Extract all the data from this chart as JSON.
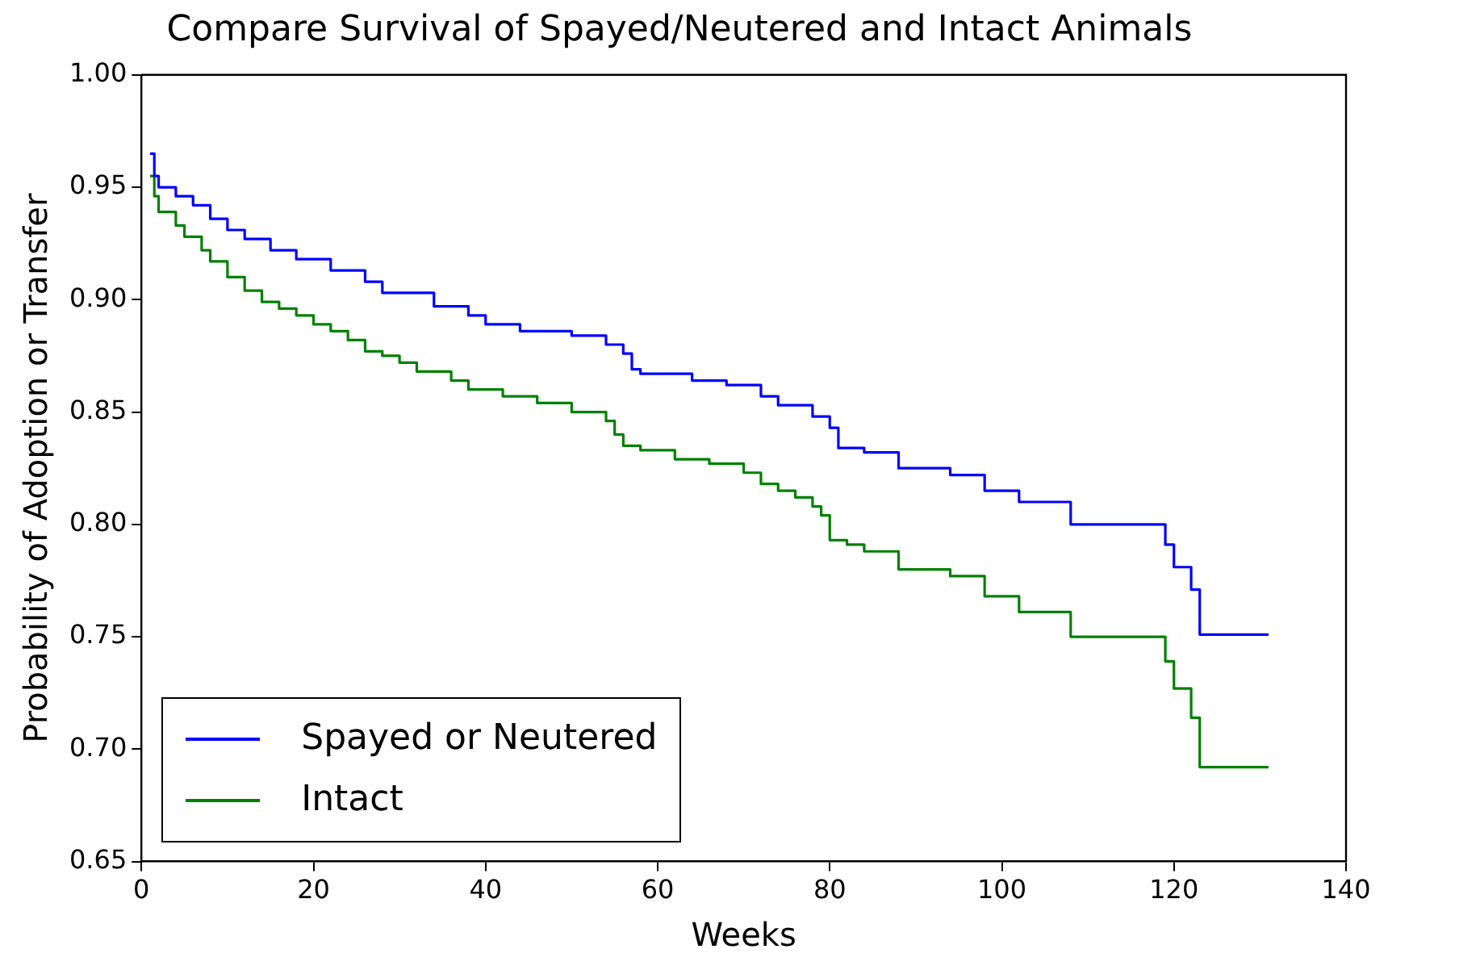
{
  "chart_data": {
    "type": "step",
    "title": "Compare Survival of Spayed/Neutered and Intact Animals",
    "xlabel": "Weeks",
    "ylabel": "Probability of Adoption or Transfer",
    "xlim": [
      0,
      140
    ],
    "xticks": [
      0,
      20,
      40,
      60,
      80,
      100,
      120,
      140
    ],
    "ylim": [
      0.65,
      1.0
    ],
    "yticks": [
      {
        "value": 0.65,
        "label": "0.65"
      },
      {
        "value": 0.7,
        "label": "0.70"
      },
      {
        "value": 0.75,
        "label": "0.75"
      },
      {
        "value": 0.8,
        "label": "0.80"
      },
      {
        "value": 0.85,
        "label": "0.85"
      },
      {
        "value": 0.9,
        "label": "0.90"
      },
      {
        "value": 0.95,
        "label": "0.95"
      },
      {
        "value": 1.0,
        "label": "1.00"
      }
    ],
    "grid": false,
    "legend": "bottom left",
    "series": [
      {
        "name": "Spayed or Neutered",
        "color": "#0000ff",
        "x": [
          1,
          1.5,
          2,
          4,
          6,
          8,
          10,
          12,
          15,
          18,
          22,
          26,
          28,
          34,
          38,
          40,
          44,
          50,
          54,
          56,
          57,
          58,
          64,
          68,
          72,
          74,
          78,
          80,
          81,
          84,
          88,
          94,
          98,
          102,
          108,
          119,
          120,
          122,
          123,
          131
        ],
        "values": [
          0.965,
          0.955,
          0.95,
          0.946,
          0.942,
          0.936,
          0.931,
          0.927,
          0.922,
          0.918,
          0.913,
          0.908,
          0.903,
          0.897,
          0.893,
          0.889,
          0.886,
          0.884,
          0.88,
          0.876,
          0.869,
          0.867,
          0.864,
          0.862,
          0.857,
          0.853,
          0.848,
          0.843,
          0.834,
          0.832,
          0.825,
          0.822,
          0.815,
          0.81,
          0.8,
          0.791,
          0.781,
          0.771,
          0.751,
          0.751
        ]
      },
      {
        "name": "Intact",
        "color": "#008000",
        "x": [
          1,
          1.5,
          2,
          4,
          5,
          7,
          8,
          10,
          12,
          14,
          16,
          18,
          20,
          22,
          24,
          26,
          28,
          30,
          32,
          36,
          38,
          42,
          46,
          50,
          54,
          55,
          56,
          58,
          62,
          66,
          70,
          72,
          74,
          76,
          78,
          79,
          80,
          82,
          84,
          88,
          94,
          98,
          102,
          108,
          119,
          120,
          122,
          123,
          131
        ],
        "values": [
          0.955,
          0.946,
          0.939,
          0.933,
          0.928,
          0.922,
          0.917,
          0.91,
          0.904,
          0.899,
          0.896,
          0.893,
          0.889,
          0.886,
          0.882,
          0.877,
          0.875,
          0.872,
          0.868,
          0.864,
          0.86,
          0.857,
          0.854,
          0.85,
          0.846,
          0.84,
          0.835,
          0.833,
          0.829,
          0.827,
          0.823,
          0.818,
          0.815,
          0.812,
          0.808,
          0.804,
          0.793,
          0.791,
          0.788,
          0.78,
          0.777,
          0.768,
          0.761,
          0.75,
          0.739,
          0.727,
          0.714,
          0.692,
          0.692
        ]
      }
    ]
  }
}
